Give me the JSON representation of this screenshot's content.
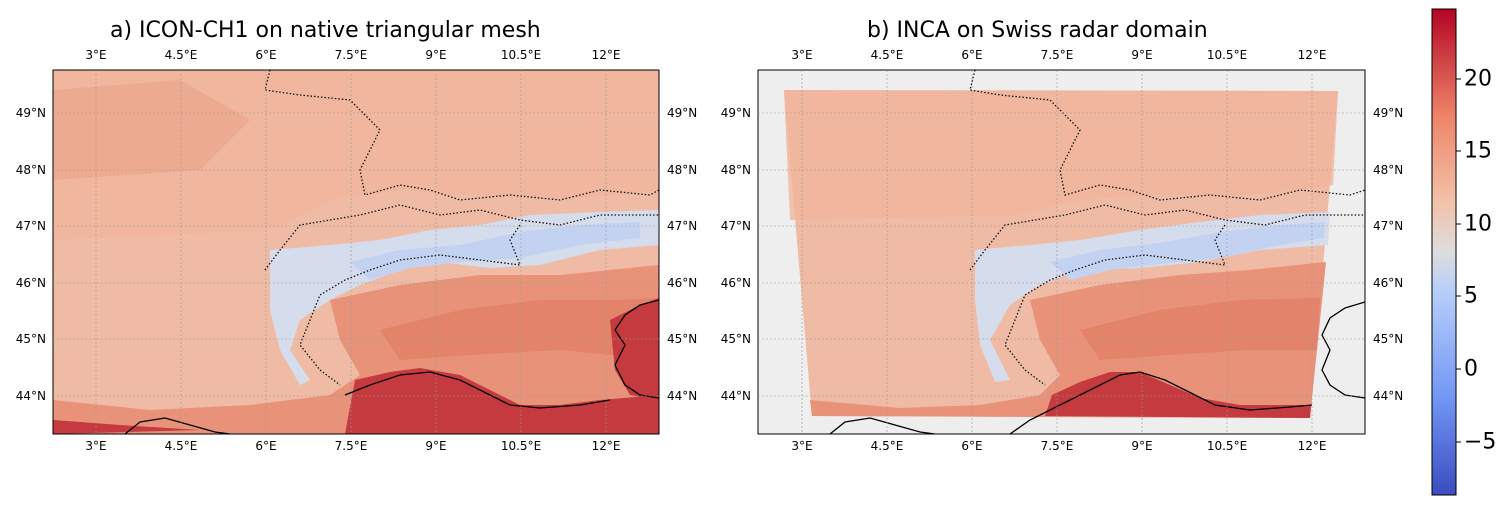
{
  "panels": [
    {
      "title": "a) ICON-CH1 on native triangular mesh",
      "lon_ticks": [
        "3°E",
        "4.5°E",
        "6°E",
        "7.5°E",
        "9°E",
        "10.5°E",
        "12°E"
      ],
      "lat_ticks": [
        "44°N",
        "45°N",
        "46°N",
        "47°N",
        "48°N",
        "49°N"
      ]
    },
    {
      "title": "b) INCA on Swiss radar domain",
      "lon_ticks": [
        "3°E",
        "4.5°E",
        "6°E",
        "7.5°E",
        "9°E",
        "10.5°E",
        "12°E"
      ],
      "lat_ticks": [
        "44°N",
        "45°N",
        "46°N",
        "47°N",
        "48°N",
        "49°N"
      ]
    }
  ],
  "colorbar": {
    "ticks": [
      "20",
      "15",
      "10",
      "5",
      "0",
      "−5"
    ],
    "colormap": "coolwarm",
    "low_color": "#3b4cc0",
    "mid_color": "#dddddd",
    "high_color": "#b40426"
  },
  "colors": {
    "warm": "#e8937a",
    "warm_light": "#f1b9a2",
    "neutral": "#e6dcd8",
    "cool": "#c9d6f0",
    "hot": "#c2313a",
    "outside_domain": "#eeeeee"
  }
}
